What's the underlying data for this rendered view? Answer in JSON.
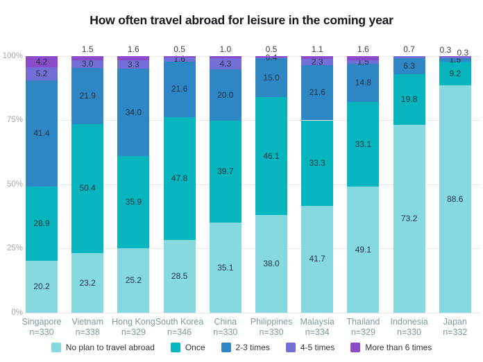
{
  "chart_data": {
    "type": "bar",
    "variant": "stacked-column-100-percent",
    "title": "How often travel abroad for leisure in the coming year",
    "unit": "percent",
    "categories": [
      "Singapore",
      "Vietnam",
      "Hong Kong",
      "South Korea",
      "China",
      "Philippines",
      "Malaysia",
      "Thailand",
      "Indonesia",
      "Japan"
    ],
    "sample_sizes": [
      "n=330",
      "n=338",
      "n=329",
      "n=346",
      "n=330",
      "n=330",
      "n=334",
      "n=329",
      "n=330",
      "n=332"
    ],
    "series": [
      {
        "name": "No plan to travel abroad",
        "color": "#86dadf",
        "values": [
          20.2,
          23.2,
          25.2,
          28.5,
          35.1,
          38.0,
          41.7,
          49.1,
          73.2,
          88.6
        ],
        "label_pos": [
          "in",
          "in",
          "in",
          "in",
          "in",
          "in",
          "in",
          "in",
          "in",
          "in"
        ]
      },
      {
        "name": "Once",
        "color": "#07b5be",
        "values": [
          28.9,
          50.4,
          35.9,
          47.8,
          39.7,
          46.1,
          33.3,
          33.1,
          19.8,
          9.2
        ],
        "label_pos": [
          "in",
          "in",
          "in",
          "in",
          "in",
          "in",
          "in",
          "in",
          "in",
          "in"
        ]
      },
      {
        "name": "2-3 times",
        "color": "#2f86c4",
        "values": [
          41.4,
          21.9,
          34.0,
          21.6,
          20.0,
          15.0,
          21.6,
          14.8,
          6.3,
          1.5
        ],
        "label_pos": [
          "in",
          "in",
          "in",
          "in",
          "in",
          "in",
          "in",
          "in",
          "in",
          "in"
        ]
      },
      {
        "name": "4-5 times",
        "color": "#746fd7",
        "values": [
          5.2,
          3.0,
          3.3,
          1.6,
          4.3,
          0.4,
          2.3,
          1.5,
          0.7,
          0.3
        ],
        "label_pos": [
          "in",
          "in",
          "in",
          "in",
          "in",
          "in",
          "in",
          "in",
          "above",
          "above"
        ]
      },
      {
        "name": "More than 6 times",
        "color": "#8a4ac9",
        "values": [
          4.2,
          1.5,
          1.6,
          0.5,
          1.0,
          0.5,
          1.1,
          1.6,
          0,
          0.3
        ],
        "label_pos": [
          "in",
          "above",
          "above",
          "above",
          "above",
          "above",
          "above",
          "above",
          "none",
          "above"
        ]
      }
    ],
    "yticks": [
      {
        "label": "0%",
        "value": 0
      },
      {
        "label": "25%",
        "value": 25
      },
      {
        "label": "50%",
        "value": 50
      },
      {
        "label": "75%",
        "value": 75
      },
      {
        "label": "100%",
        "value": 100
      }
    ],
    "ylim": [
      0,
      100
    ],
    "grid": true,
    "legend_position": "bottom"
  },
  "style": {
    "title_color": "#16161e",
    "grid_color": "#e7e7e7",
    "axis_tick_color": "#a2aaa5",
    "category_label_color": "#7d9a9b",
    "value_label_color": "#1e3044",
    "outside_label_color": "#3a3d42",
    "legend_text_color": "#333333",
    "background": "#ffffff"
  }
}
